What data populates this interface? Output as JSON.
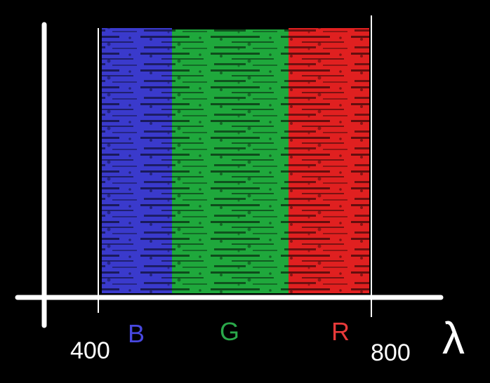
{
  "diagram": {
    "background": "#000000",
    "axis_color": "#ffffff",
    "tick_start": "400",
    "tick_end": "800",
    "axis_symbol": "λ",
    "bands": [
      {
        "letter": "B",
        "color": "#3a3acc",
        "label_color": "#4848e0"
      },
      {
        "letter": "G",
        "color": "#1fa83c",
        "label_color": "#2aa84a"
      },
      {
        "letter": "R",
        "color": "#e02020",
        "label_color": "#e83a3a"
      }
    ]
  }
}
